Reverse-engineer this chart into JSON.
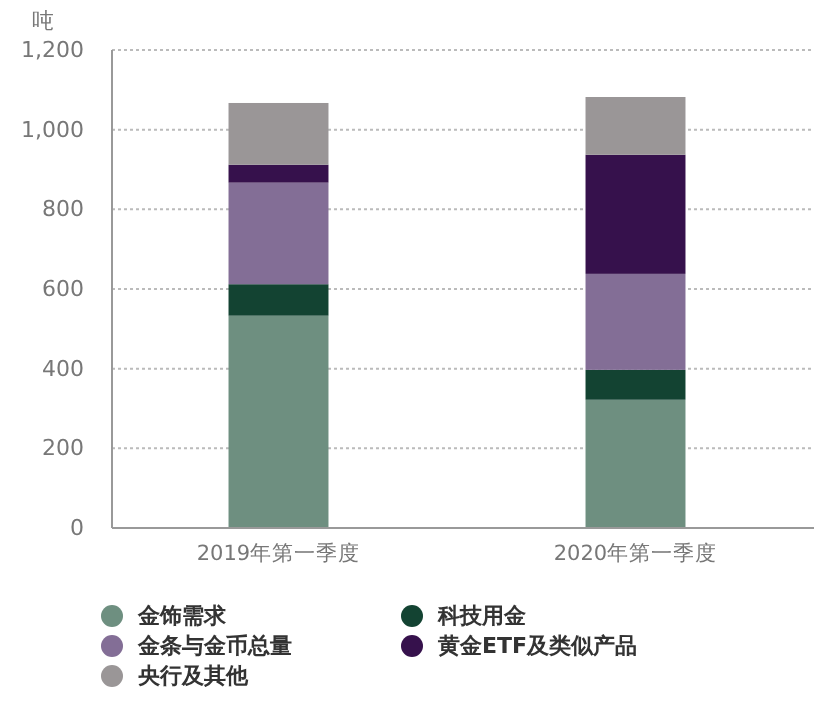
{
  "chart_data": {
    "type": "bar",
    "stacked": true,
    "ylabel": "吨",
    "categories": [
      "2019年第一季度",
      "2020年第一季度"
    ],
    "series": [
      {
        "name": "金饰需求",
        "color": "#6e8f80",
        "values": [
          533,
          322
        ]
      },
      {
        "name": "科技用金",
        "color": "#134332",
        "values": [
          79,
          75
        ]
      },
      {
        "name": "金条与金币总量",
        "color": "#836e96",
        "values": [
          255,
          241
        ]
      },
      {
        "name": "黄金ETF及类似产品",
        "color": "#36114c",
        "values": [
          45,
          299
        ]
      },
      {
        "name": "央行及其他",
        "color": "#9a9697",
        "values": [
          155,
          145
        ]
      }
    ],
    "ylim": [
      0,
      1200
    ],
    "yticks": [
      0,
      {
        "value": 200,
        "label": "200"
      },
      {
        "value": 400,
        "label": "400"
      },
      {
        "value": 600,
        "label": "600"
      },
      {
        "value": 800,
        "label": "800"
      },
      {
        "value": 1000,
        "label": "1,000"
      },
      {
        "value": 1200,
        "label": "1,200"
      }
    ],
    "grid": "y",
    "legend": "bottom"
  }
}
